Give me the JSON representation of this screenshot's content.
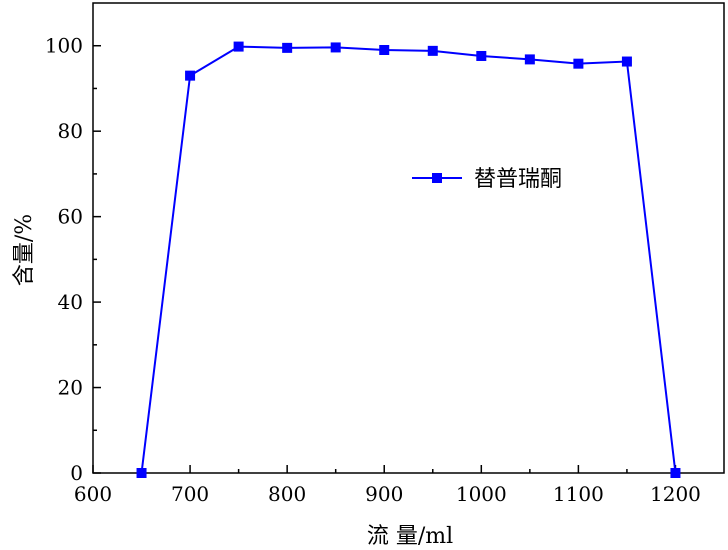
{
  "chart_data": {
    "type": "line",
    "title": "",
    "xlabel": "流 量/ml",
    "ylabel": "含量/%",
    "xlim": [
      600,
      1250
    ],
    "ylim": [
      0,
      110
    ],
    "xticks": [
      600,
      700,
      800,
      900,
      1000,
      1100,
      1200
    ],
    "yticks": [
      0,
      20,
      40,
      60,
      80,
      100
    ],
    "grid": false,
    "legend_position": "center-right",
    "series": [
      {
        "name": "替普瑞酮",
        "color": "#0000ff",
        "marker": "square",
        "x": [
          650,
          700,
          750,
          800,
          850,
          900,
          950,
          1000,
          1050,
          1100,
          1150,
          1200
        ],
        "y": [
          0,
          93,
          99.8,
          99.5,
          99.6,
          99,
          98.8,
          97.6,
          96.8,
          95.8,
          96.3,
          0
        ]
      }
    ]
  }
}
